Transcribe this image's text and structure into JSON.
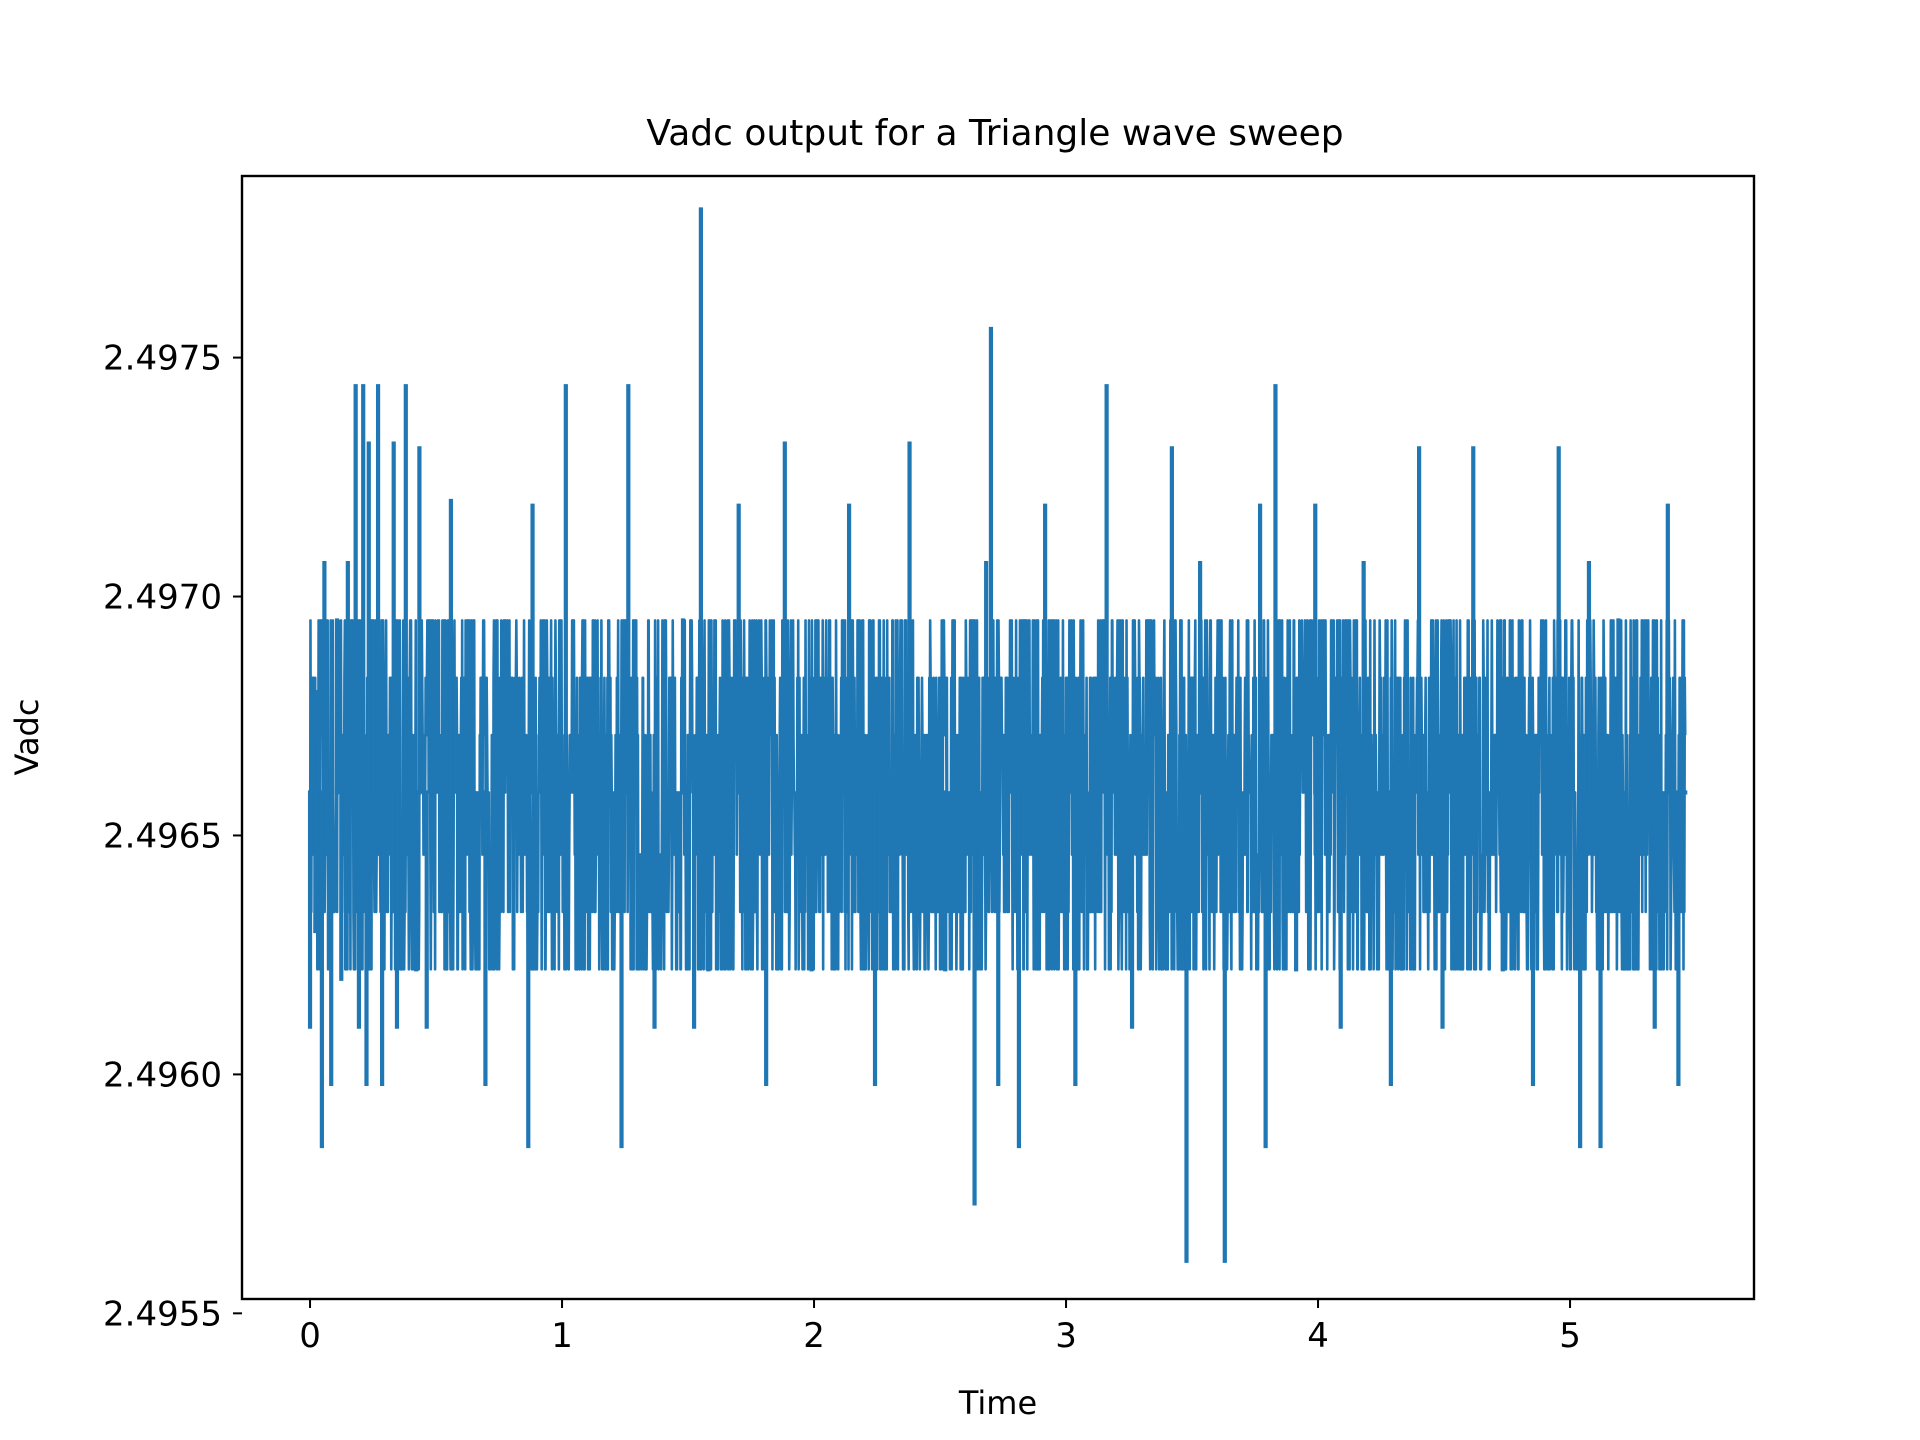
{
  "chart_data": {
    "type": "line",
    "title": "Vadc output for a Triangle wave sweep",
    "xlabel": "Time",
    "ylabel": "Vadc",
    "xlim": [
      -0.27,
      5.73
    ],
    "ylim": [
      2.49553,
      2.49788
    ],
    "x_ticks": [
      0,
      1,
      2,
      3,
      4,
      5
    ],
    "x_tick_labels": [
      "0",
      "1",
      "2",
      "3",
      "4",
      "5"
    ],
    "y_ticks": [
      2.4955,
      2.496,
      2.4965,
      2.497,
      2.4975
    ],
    "y_tick_labels": [
      "2.4955",
      "2.4960",
      "2.4965",
      "2.4970",
      "2.4975"
    ],
    "grid": false,
    "legend": "none",
    "series_color": "#1f77b4",
    "series": [
      {
        "name": "",
        "x": [
          0.0,
          0.009,
          0.021,
          0.034,
          0.047,
          0.057,
          0.07,
          0.084,
          0.107,
          0.124,
          0.15,
          0.181,
          0.194,
          0.211,
          0.224,
          0.233,
          0.27,
          0.286,
          0.332,
          0.345,
          0.38,
          0.421,
          0.434,
          0.463,
          0.559,
          0.696,
          0.866,
          0.883,
          1.015,
          1.236,
          1.263,
          1.367,
          1.48,
          1.524,
          1.551,
          1.581,
          1.701,
          1.81,
          1.884,
          1.99,
          2.139,
          2.242,
          2.379,
          2.521,
          2.637,
          2.683,
          2.702,
          2.731,
          2.813,
          2.917,
          3.037,
          3.161,
          3.262,
          3.42,
          3.478,
          3.532,
          3.63,
          3.77,
          3.792,
          3.831,
          3.913,
          3.989,
          4.09,
          4.181,
          4.289,
          4.401,
          4.494,
          4.616,
          4.733,
          4.853,
          4.955,
          5.04,
          5.075,
          5.121,
          5.192,
          5.336,
          5.388,
          5.43,
          5.457
        ],
        "y": [
          2.4961,
          2.4967,
          2.4963,
          2.4968,
          2.49585,
          2.49707,
          2.4965,
          2.49598,
          2.49695,
          2.4962,
          2.49707,
          2.49744,
          2.4961,
          2.49744,
          2.49598,
          2.49732,
          2.49744,
          2.49598,
          2.49732,
          2.4961,
          2.49744,
          2.49622,
          2.49731,
          2.4961,
          2.4972,
          2.49598,
          2.49585,
          2.49719,
          2.49744,
          2.49585,
          2.49744,
          2.4961,
          2.49695,
          2.4961,
          2.49781,
          2.49622,
          2.49719,
          2.49598,
          2.49732,
          2.49622,
          2.49719,
          2.49598,
          2.49732,
          2.49622,
          2.49573,
          2.49707,
          2.49756,
          2.49598,
          2.49585,
          2.49719,
          2.49598,
          2.49744,
          2.4961,
          2.49731,
          2.49561,
          2.49707,
          2.49561,
          2.49719,
          2.49585,
          2.49744,
          2.49622,
          2.49719,
          2.4961,
          2.49707,
          2.49598,
          2.49731,
          2.4961,
          2.49731,
          2.49622,
          2.49598,
          2.49731,
          2.49585,
          2.49707,
          2.49585,
          2.49695,
          2.4961,
          2.49719,
          2.49598,
          2.49659
        ]
      }
    ]
  }
}
